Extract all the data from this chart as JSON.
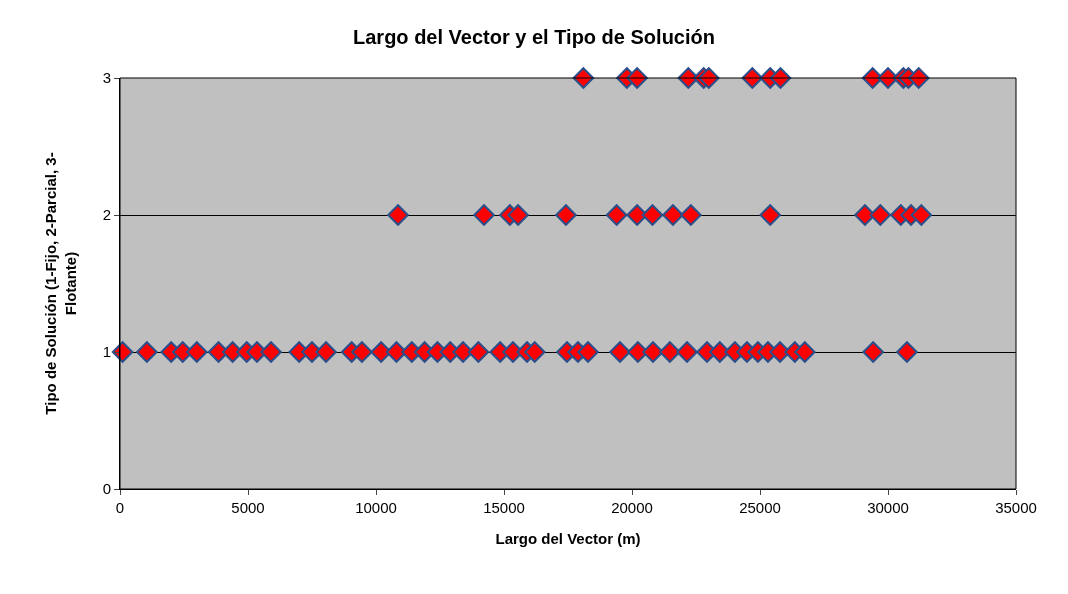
{
  "chart_data": {
    "type": "scatter",
    "title": "Largo del Vector y el Tipo de Solución",
    "xlabel": "Largo del Vector (m)",
    "ylabel": "Tipo de Solución (1-Fijo, 2-Parcial, 3-\nFlotante)",
    "series": [
      {
        "color": "#ff0000",
        "x": [
          100,
          1050,
          2000,
          2450,
          3000,
          3850,
          4400,
          4950,
          5350,
          5900,
          7000,
          7500,
          8050,
          9050,
          9450,
          10200,
          10800,
          11400,
          11900,
          12400,
          12900,
          13400,
          14000,
          14850,
          15350,
          15900,
          16200,
          17460,
          17890,
          18280,
          19530,
          20230,
          20820,
          21480,
          22150,
          22930,
          23430,
          24020,
          24490,
          24920,
          25310,
          25780,
          26360,
          26750,
          29420,
          30740,
          10860,
          14220,
          15230,
          15550,
          17420,
          19400,
          20200,
          20800,
          21600,
          22300,
          25400,
          29100,
          29700,
          30500,
          30900,
          31300,
          18100,
          19800,
          20200,
          22200,
          22800,
          23000,
          24700,
          25400,
          25800,
          29400,
          30000,
          30600,
          30800,
          31200
        ],
        "values": [
          1,
          1,
          1,
          1,
          1,
          1,
          1,
          1,
          1,
          1,
          1,
          1,
          1,
          1,
          1,
          1,
          1,
          1,
          1,
          1,
          1,
          1,
          1,
          1,
          1,
          1,
          1,
          1,
          1,
          1,
          1,
          1,
          1,
          1,
          1,
          1,
          1,
          1,
          1,
          1,
          1,
          1,
          1,
          1,
          1,
          1,
          2,
          2,
          2,
          2,
          2,
          2,
          2,
          2,
          2,
          2,
          2,
          2,
          2,
          2,
          2,
          2,
          3,
          3,
          3,
          3,
          3,
          3,
          3,
          3,
          3,
          3,
          3,
          3,
          3,
          3
        ]
      }
    ],
    "marker": "diamond",
    "xlim": [
      0,
      35000
    ],
    "xticks": [
      0,
      5000,
      10000,
      15000,
      20000,
      25000,
      30000,
      35000
    ],
    "ylim": [
      0,
      3
    ],
    "yticks": [
      0,
      1,
      2,
      3
    ],
    "grid": "y"
  }
}
